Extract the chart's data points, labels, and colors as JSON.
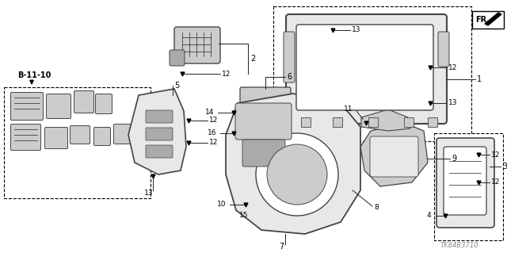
{
  "bg_color": "#ffffff",
  "fig_width": 6.4,
  "fig_height": 3.19,
  "dpi": 100,
  "lc": "#222222",
  "pc": "#444444",
  "fc_light": "#e8e8e8",
  "fc_mid": "#cccccc",
  "fc_dark": "#aaaaaa",
  "label_fs": 7,
  "small_fs": 6.5,
  "diagram_code": "TK84B3710"
}
